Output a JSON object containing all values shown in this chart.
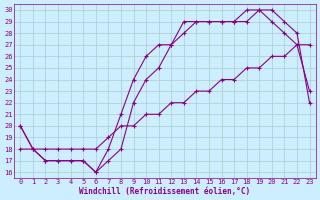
{
  "xlabel": "Windchill (Refroidissement éolien,°C)",
  "xlim": [
    0,
    23
  ],
  "ylim": [
    16,
    30
  ],
  "xticks": [
    0,
    1,
    2,
    3,
    4,
    5,
    6,
    7,
    8,
    9,
    10,
    11,
    12,
    13,
    14,
    15,
    16,
    17,
    18,
    19,
    20,
    21,
    22,
    23
  ],
  "yticks": [
    16,
    17,
    18,
    19,
    20,
    21,
    22,
    23,
    24,
    25,
    26,
    27,
    28,
    29,
    30
  ],
  "bg_color": "#cceeff",
  "line_color": "#880088",
  "grid_color": "#aacccc",
  "font_color": "#880088",
  "line1_x": [
    0,
    1,
    2,
    3,
    4,
    5,
    6,
    7,
    8,
    9,
    10,
    11,
    12,
    13,
    14,
    15,
    16,
    17,
    18,
    19,
    20,
    21,
    22,
    23
  ],
  "line1_y": [
    20,
    18,
    17,
    17,
    17,
    17,
    16,
    18,
    21,
    24,
    26,
    27,
    27,
    29,
    29,
    29,
    29,
    29,
    30,
    30,
    29,
    28,
    27,
    23
  ],
  "line2_x": [
    0,
    1,
    2,
    3,
    4,
    5,
    6,
    7,
    8,
    9,
    10,
    11,
    12,
    13,
    14,
    15,
    16,
    17,
    18,
    19,
    20,
    21,
    22,
    23
  ],
  "line2_y": [
    20,
    18,
    17,
    17,
    17,
    17,
    16,
    17,
    18,
    22,
    24,
    25,
    27,
    28,
    29,
    29,
    29,
    29,
    29,
    30,
    30,
    29,
    28,
    22
  ],
  "line3_x": [
    0,
    1,
    2,
    3,
    4,
    5,
    6,
    7,
    8,
    9,
    10,
    11,
    12,
    13,
    14,
    15,
    16,
    17,
    18,
    19,
    20,
    21,
    22,
    23
  ],
  "line3_y": [
    18,
    18,
    18,
    18,
    18,
    18,
    18,
    19,
    20,
    20,
    21,
    21,
    22,
    22,
    23,
    23,
    24,
    24,
    25,
    25,
    26,
    26,
    27,
    27
  ]
}
